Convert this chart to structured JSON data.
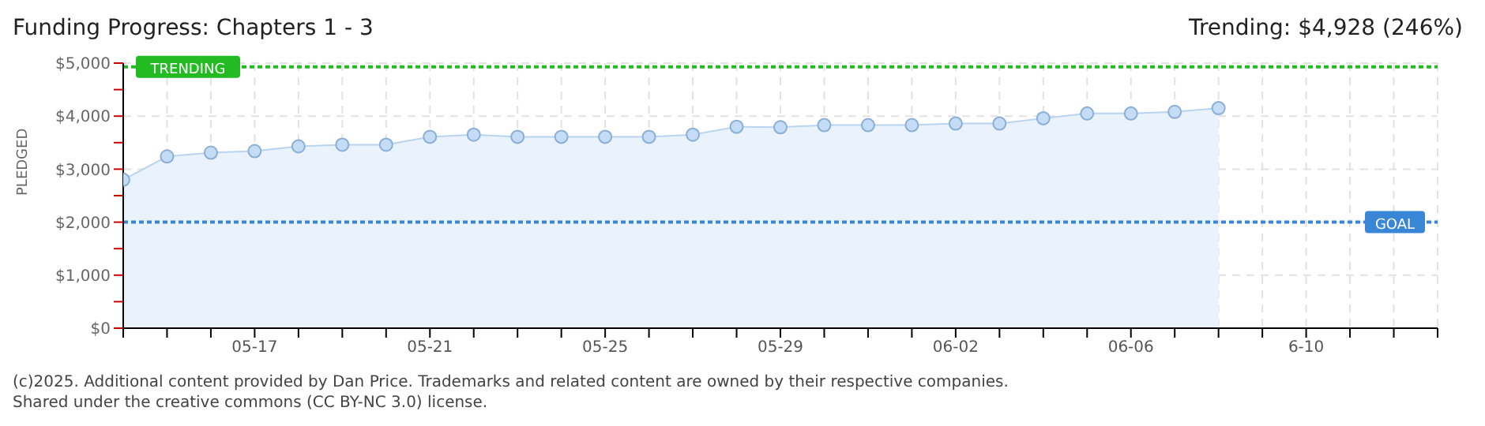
{
  "chart_data": {
    "type": "area",
    "title": "Funding Progress: Chapters 1 - 3",
    "ylabel": "PLEDGED",
    "annotations": [
      "Trending: $4,928 (246%)",
      "(c)2025. Additional content provided by Dan Price. Trademarks and related content are owned by their respective companies.",
      "Shared under the creative commons (CC BY-NC 3.0) license."
    ],
    "categories": [
      null,
      null,
      null,
      "05-17",
      null,
      null,
      null,
      "05-21",
      null,
      null,
      null,
      "05-25",
      null,
      null,
      null,
      "05-29",
      null,
      null,
      null,
      "06-02",
      null,
      null,
      null,
      "06-06",
      null,
      null,
      null,
      "6-10",
      null,
      null,
      null
    ],
    "series": [
      {
        "color": "#b8d4f0",
        "values": [
          2800,
          3240,
          3310,
          3340,
          3430,
          3460,
          3460,
          3610,
          3650,
          3610,
          3610,
          3610,
          3610,
          3650,
          3800,
          3790,
          3830,
          3830,
          3830,
          3860,
          3860,
          3960,
          4050,
          4050,
          4080,
          4150,
          null,
          null,
          null,
          null,
          null
        ]
      }
    ],
    "ylim": [
      0,
      5000
    ],
    "yticks": [
      {
        "value": 0,
        "label": "$0"
      },
      {
        "value": 500,
        "label": null
      },
      {
        "value": 1000,
        "label": "$1,000"
      },
      {
        "value": 1500,
        "label": null
      },
      {
        "value": 2000,
        "label": "$2,000"
      },
      {
        "value": 2500,
        "label": null
      },
      {
        "value": 3000,
        "label": "$3,000"
      },
      {
        "value": 3500,
        "label": null
      },
      {
        "value": 4000,
        "label": "$4,000"
      },
      {
        "value": 4500,
        "label": null
      },
      {
        "value": 5000,
        "label": "$5,000"
      }
    ],
    "ref_lines": [
      {
        "axis": "y",
        "value": 4928,
        "label": "TRENDING",
        "color": "#22bb22",
        "line_style": "dotted"
      },
      {
        "axis": "y",
        "value": 2000,
        "label": "GOAL",
        "color": "#3a86d6",
        "line_style": "dotted"
      }
    ],
    "grid": true,
    "marker": "circle"
  }
}
